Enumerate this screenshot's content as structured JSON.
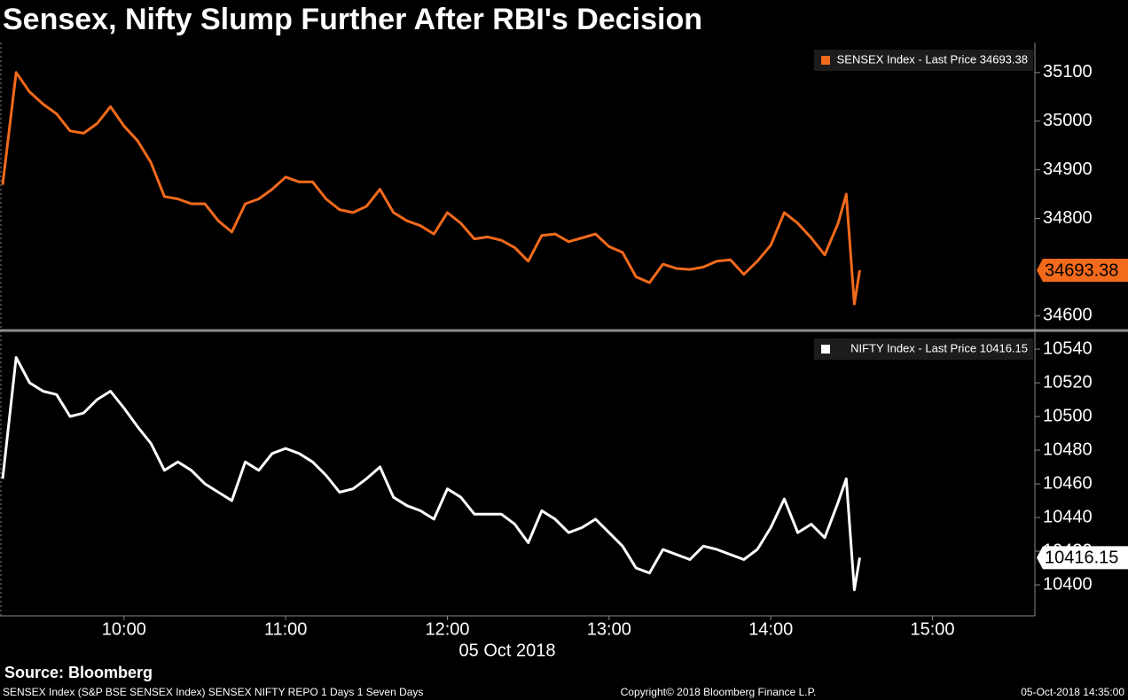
{
  "title": "Sensex, Nifty Slump Further After RBI's Decision",
  "source": "Source: Bloomberg",
  "footer": {
    "left": "SENSEX Index (S&P BSE SENSEX Index) SENSEX NIFTY REPO 1 Days 1 Seven Days",
    "center": "Copyright© 2018 Bloomberg Finance L.P.",
    "right": "05-Oct-2018 14:35:00"
  },
  "chart_data": [
    {
      "type": "line",
      "x": [
        "09:15",
        "09:20",
        "09:25",
        "09:30",
        "09:35",
        "09:40",
        "09:45",
        "09:50",
        "09:55",
        "10:00",
        "10:05",
        "10:10",
        "10:15",
        "10:20",
        "10:25",
        "10:30",
        "10:35",
        "10:40",
        "10:45",
        "10:50",
        "10:55",
        "11:00",
        "11:05",
        "11:10",
        "11:15",
        "11:20",
        "11:25",
        "11:30",
        "11:35",
        "11:40",
        "11:45",
        "11:50",
        "11:55",
        "12:00",
        "12:05",
        "12:10",
        "12:15",
        "12:20",
        "12:25",
        "12:30",
        "12:35",
        "12:40",
        "12:45",
        "12:50",
        "12:55",
        "13:00",
        "13:05",
        "13:10",
        "13:15",
        "13:20",
        "13:25",
        "13:30",
        "13:35",
        "13:40",
        "13:45",
        "13:50",
        "13:55",
        "14:00",
        "14:05",
        "14:10",
        "14:15",
        "14:20",
        "14:25",
        "14:28",
        "14:31",
        "14:33"
      ],
      "series": [
        {
          "name": "SENSEX Index - Last Price 34693.38",
          "color": "#f26a1b",
          "values": [
            34869,
            35100,
            35060,
            35035,
            35015,
            34980,
            34975,
            34995,
            35030,
            34990,
            34960,
            34915,
            34845,
            34840,
            34830,
            34830,
            34795,
            34772,
            34830,
            34840,
            34860,
            34885,
            34875,
            34875,
            34840,
            34818,
            34812,
            34825,
            34860,
            34812,
            34795,
            34785,
            34768,
            34812,
            34790,
            34758,
            34762,
            34755,
            34740,
            34712,
            34765,
            34768,
            34752,
            34760,
            34768,
            34742,
            34730,
            34680,
            34668,
            34706,
            34697,
            34695,
            34700,
            34712,
            34715,
            34685,
            34712,
            34745,
            34812,
            34790,
            34760,
            34725,
            34790,
            34850,
            34624,
            34693.38
          ]
        }
      ],
      "xlim": [
        "09:14",
        "15:38"
      ],
      "ylim": [
        34575,
        35158
      ],
      "yticks": [
        34600,
        34800,
        34900,
        35000,
        35100
      ]
    },
    {
      "type": "line",
      "x": [
        "09:15",
        "09:20",
        "09:25",
        "09:30",
        "09:35",
        "09:40",
        "09:45",
        "09:50",
        "09:55",
        "10:00",
        "10:05",
        "10:10",
        "10:15",
        "10:20",
        "10:25",
        "10:30",
        "10:35",
        "10:40",
        "10:45",
        "10:50",
        "10:55",
        "11:00",
        "11:05",
        "11:10",
        "11:15",
        "11:20",
        "11:25",
        "11:30",
        "11:35",
        "11:40",
        "11:45",
        "11:50",
        "11:55",
        "12:00",
        "12:05",
        "12:10",
        "12:15",
        "12:20",
        "12:25",
        "12:30",
        "12:35",
        "12:40",
        "12:45",
        "12:50",
        "12:55",
        "13:00",
        "13:05",
        "13:10",
        "13:15",
        "13:20",
        "13:25",
        "13:30",
        "13:35",
        "13:40",
        "13:45",
        "13:50",
        "13:55",
        "14:00",
        "14:05",
        "14:10",
        "14:15",
        "14:20",
        "14:25",
        "14:28",
        "14:31",
        "14:33"
      ],
      "series": [
        {
          "name": "NIFTY Index - Last Price 10416.15",
          "color": "#ffffff",
          "values": [
            10463,
            10535,
            10520,
            10515,
            10513,
            10500,
            10502,
            10510,
            10515,
            10505,
            10494,
            10484,
            10468,
            10473,
            10468,
            10460,
            10455,
            10450,
            10473,
            10468,
            10478,
            10481,
            10478,
            10473,
            10465,
            10455,
            10457,
            10463,
            10470,
            10452,
            10447,
            10444,
            10439,
            10457,
            10452,
            10442,
            10442,
            10442,
            10436,
            10425,
            10444,
            10439,
            10431,
            10434,
            10439,
            10431,
            10423,
            10410,
            10407,
            10421,
            10418,
            10415,
            10423,
            10421,
            10418,
            10415,
            10421,
            10434,
            10451,
            10431,
            10436,
            10428,
            10449,
            10463,
            10397,
            10416.15
          ]
        }
      ],
      "xlim": [
        "09:14",
        "15:38"
      ],
      "ylim": [
        10381.6,
        10549.5
      ],
      "yticks": [
        10400,
        10420,
        10440,
        10460,
        10480,
        10500,
        10520,
        10540
      ],
      "xticks": [
        "10:00",
        "11:00",
        "12:00",
        "13:00",
        "14:00",
        "15:00"
      ],
      "xlabel": "05 Oct 2018"
    }
  ]
}
